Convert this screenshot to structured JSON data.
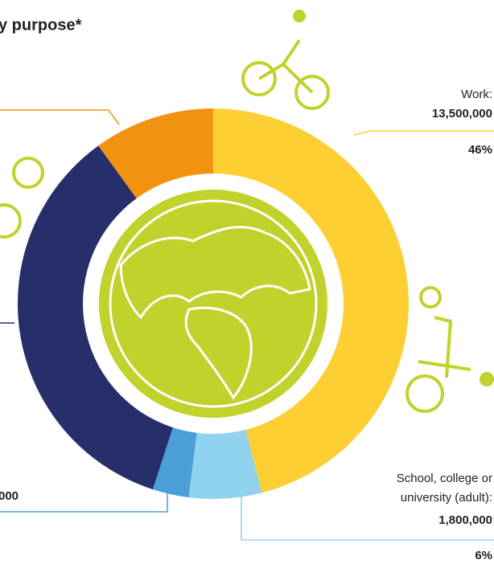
{
  "chart_data": {
    "type": "pie",
    "title": "y purpose*",
    "categories": [
      "Work:",
      "School, college or university (adult):",
      null,
      null,
      null
    ],
    "values": [
      46,
      6,
      3,
      35,
      10
    ],
    "value_labels": [
      "46%",
      "6%",
      null,
      null,
      null
    ],
    "amounts": [
      13500000,
      1800000,
      null,
      null,
      null
    ],
    "amount_labels": [
      "13,500,000",
      "1,800,000",
      null,
      null,
      null
    ],
    "colors": [
      "#fecf33",
      "#8fd3ef",
      "#4a9fd8",
      "#262f6a",
      "#f29211"
    ],
    "annotations": [
      "000"
    ]
  }
}
